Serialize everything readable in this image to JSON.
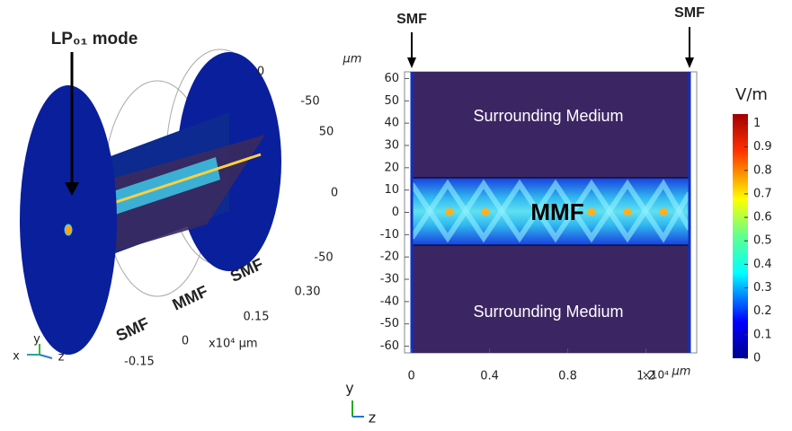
{
  "left_panel": {
    "mode_label": "LP₀₁ mode",
    "fiber_labels": [
      "SMF",
      "MMF",
      "SMF"
    ],
    "axis_labels": [
      "0",
      "-50",
      "50",
      "0",
      "-50",
      "0.30",
      "0.15",
      "0",
      "-0.15"
    ],
    "unit": "x10⁴ μm",
    "triad": [
      "y",
      "x",
      "z"
    ]
  },
  "chart_data": {
    "type": "heatmap",
    "ylabel": "μm",
    "xunit": "×10⁴",
    "xlabel": "μm",
    "ylim": [
      -63,
      63
    ],
    "yticks": [
      -60,
      -50,
      -40,
      -30,
      -20,
      -10,
      0,
      10,
      20,
      30,
      40,
      50,
      60
    ],
    "xlim": [
      -0.035,
      1.46
    ],
    "xticks": [
      0,
      0.4,
      0.8,
      1.2
    ],
    "annotations": [
      "SMF",
      "SMF",
      "Surrounding Medium",
      "MMF",
      "Surrounding Medium"
    ],
    "colorbar": {
      "title": "V/m",
      "lim": [
        0,
        1.04
      ],
      "ticks": [
        0,
        0.1,
        0.2,
        0.3,
        0.4,
        0.5,
        0.6,
        0.7,
        0.8,
        0.9,
        1
      ]
    },
    "triad": [
      "y",
      "z"
    ]
  }
}
